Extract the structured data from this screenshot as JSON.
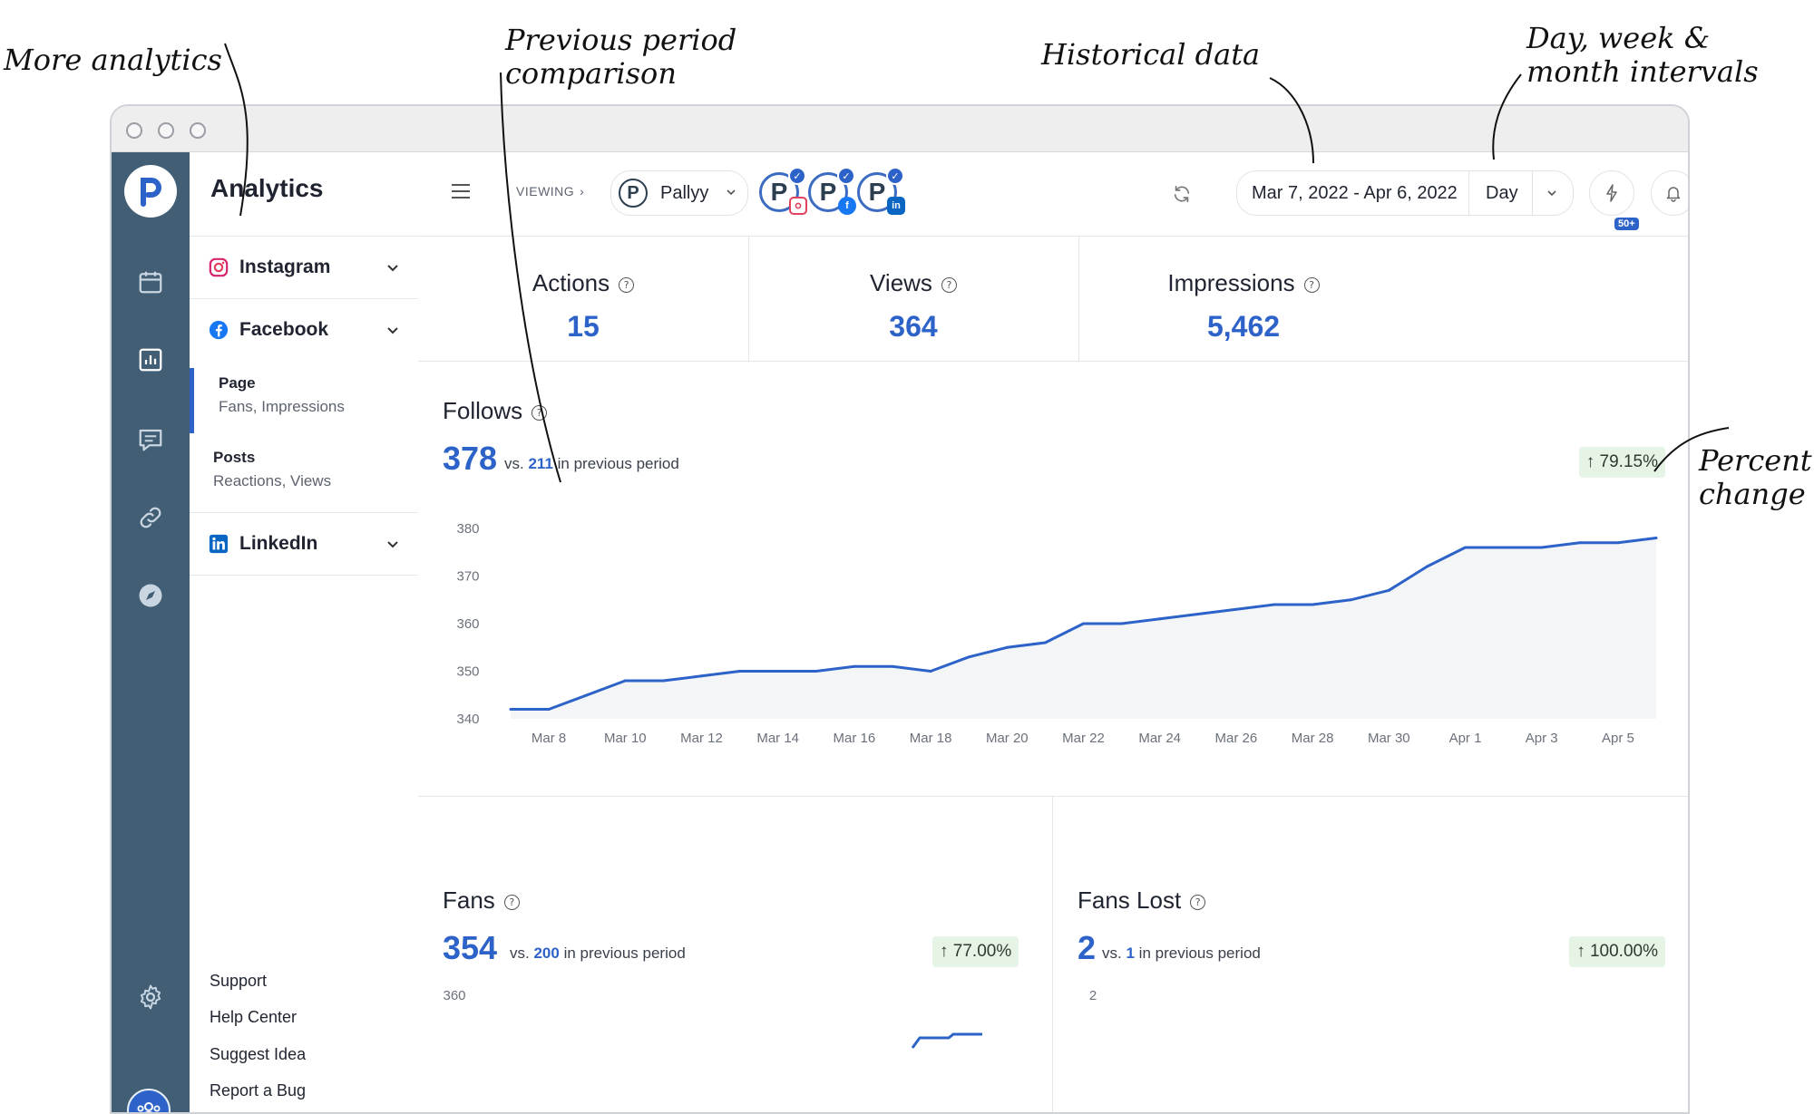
{
  "annotations": {
    "more_analytics": "More analytics",
    "previous_period_line1": "Previous period",
    "previous_period_line2": "comparison",
    "historical": "Historical data",
    "intervals_line1": "Day, week &",
    "intervals_line2": "month intervals",
    "percent_line1": "Percent",
    "percent_line2": "change"
  },
  "sidebar": {
    "title": "Analytics",
    "networks": [
      {
        "label": "Instagram",
        "icon": "instagram-icon",
        "color": "#d6256f"
      },
      {
        "label": "Facebook",
        "icon": "facebook-icon",
        "color": "#1877f2"
      },
      {
        "label": "LinkedIn",
        "icon": "linkedin-icon",
        "color": "#0a66c2"
      }
    ],
    "subitems": [
      {
        "title": "Page",
        "subtitle": "Fans, Impressions"
      },
      {
        "title": "Posts",
        "subtitle": "Reactions, Views"
      }
    ],
    "footer": [
      "Support",
      "Help Center",
      "Suggest Idea",
      "Report a Bug"
    ]
  },
  "topbar": {
    "viewing": "VIEWING",
    "workspace": "Pallyy",
    "date_range": "Mar 7, 2022 - Apr 6, 2022",
    "interval": "Day",
    "notifications_badge": "50+"
  },
  "stats": [
    {
      "label": "Actions",
      "value": "15"
    },
    {
      "label": "Views",
      "value": "364"
    },
    {
      "label": "Impressions",
      "value": "5,462"
    }
  ],
  "follows": {
    "title": "Follows",
    "value": "378",
    "vs": "vs.",
    "prev": "211",
    "in_prev": "in previous period",
    "change": "79.15%"
  },
  "fans": {
    "title": "Fans",
    "value": "354",
    "vs": "vs.",
    "prev": "200",
    "in_prev": "in previous period",
    "change": "77.00%",
    "ytick": "360"
  },
  "fans_lost": {
    "title": "Fans Lost",
    "value": "2",
    "vs": "vs.",
    "prev": "1",
    "in_prev": "in previous period",
    "change": "100.00%",
    "ytick": "2"
  },
  "colors": {
    "accent": "#2d63c8",
    "rail": "#415e75",
    "positive_bg": "#e5f4e5"
  },
  "chart_data": {
    "type": "area",
    "title": "Follows",
    "ylim": [
      340,
      380
    ],
    "yticks": [
      "340",
      "350",
      "360",
      "370",
      "380"
    ],
    "xticks": [
      "Mar 8",
      "Mar 10",
      "Mar 12",
      "Mar 14",
      "Mar 16",
      "Mar 18",
      "Mar 20",
      "Mar 22",
      "Mar 24",
      "Mar 26",
      "Mar 28",
      "Mar 30",
      "Apr 1",
      "Apr 3",
      "Apr 5"
    ],
    "x": [
      "Mar 7",
      "Mar 8",
      "Mar 9",
      "Mar 10",
      "Mar 11",
      "Mar 12",
      "Mar 13",
      "Mar 14",
      "Mar 15",
      "Mar 16",
      "Mar 17",
      "Mar 18",
      "Mar 19",
      "Mar 20",
      "Mar 21",
      "Mar 22",
      "Mar 23",
      "Mar 24",
      "Mar 25",
      "Mar 26",
      "Mar 27",
      "Mar 28",
      "Mar 29",
      "Mar 30",
      "Mar 31",
      "Apr 1",
      "Apr 2",
      "Apr 3",
      "Apr 4",
      "Apr 5",
      "Apr 6"
    ],
    "values": [
      342,
      342,
      345,
      348,
      348,
      349,
      350,
      350,
      350,
      351,
      351,
      350,
      353,
      355,
      356,
      360,
      360,
      361,
      362,
      363,
      364,
      364,
      365,
      367,
      372,
      376,
      376,
      376,
      377,
      377,
      378
    ],
    "grid": false
  }
}
